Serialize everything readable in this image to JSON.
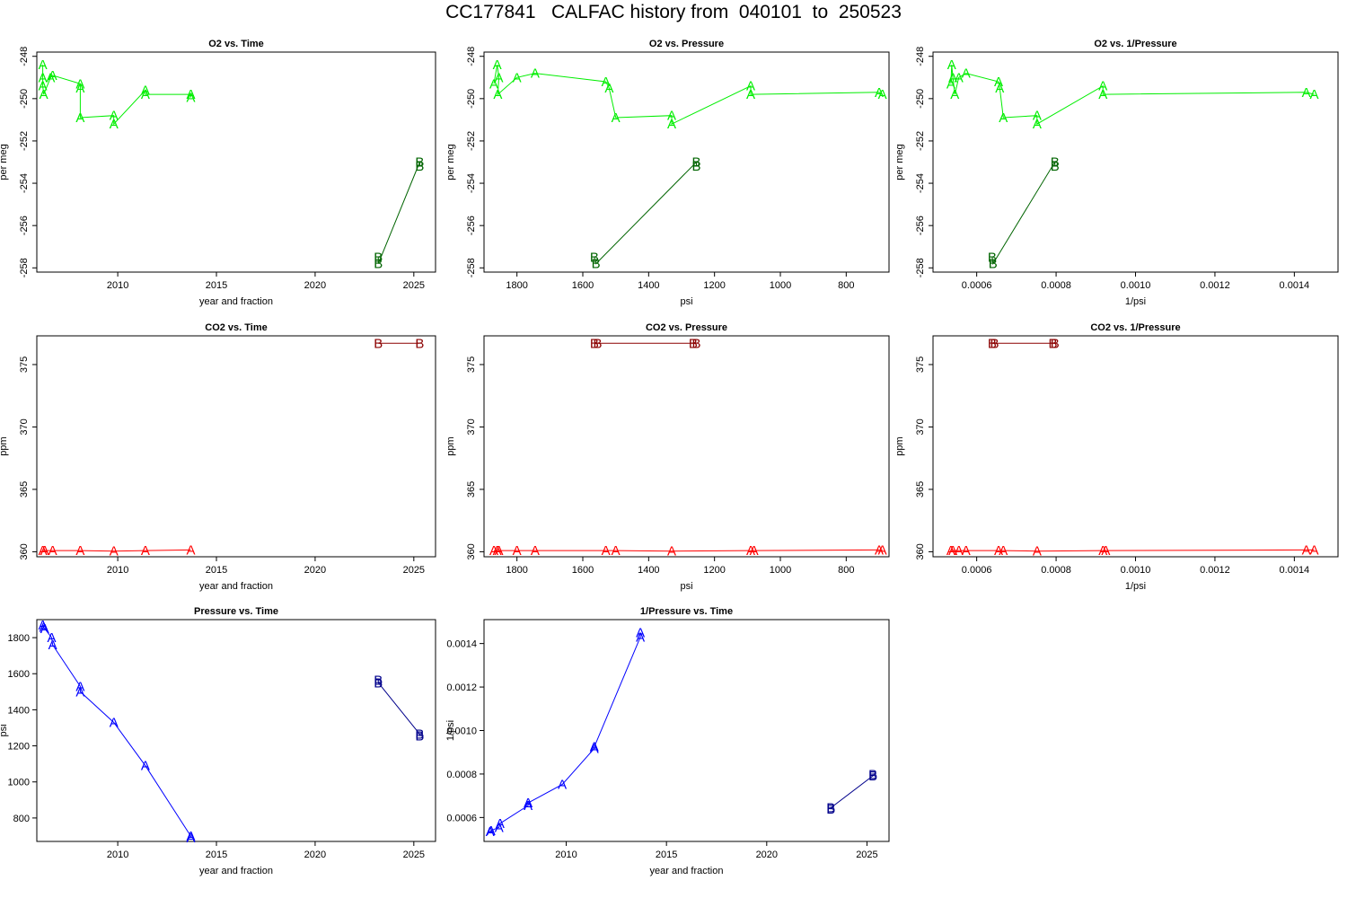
{
  "page_title": "CC177841   CALFAC history from  040101  to  250523",
  "chart_data": [
    {
      "type": "scatter",
      "title": "O2 vs. Time",
      "xlabel": "year and fraction",
      "ylabel": "per meg",
      "xlim": [
        2005.9,
        2026.1
      ],
      "ylim": [
        -258.2,
        -247.8
      ],
      "yreverse": false,
      "xreverse": false,
      "ylabel_rotate": true,
      "xticks": [
        2010,
        2015,
        2020,
        2025
      ],
      "yticks": [
        -258,
        -256,
        -254,
        -252,
        -250,
        -248
      ],
      "xtick_labels": [
        "2010",
        "2015",
        "2020",
        "2025"
      ],
      "ytick_labels": [
        "-258",
        "-256",
        "-254",
        "-252",
        "-250",
        "-248"
      ],
      "series": [
        {
          "name": "A",
          "color": "#00ee00",
          "line": true,
          "points": [
            [
              2006.2,
              -248.4
            ],
            [
              2006.2,
              -249.0
            ],
            [
              2006.2,
              -249.4
            ],
            [
              2006.25,
              -249.8
            ],
            [
              2006.6,
              -249.0
            ],
            [
              2006.7,
              -248.9
            ],
            [
              2008.1,
              -249.3
            ],
            [
              2008.1,
              -249.5
            ],
            [
              2008.1,
              -250.9
            ],
            [
              2009.8,
              -250.8
            ],
            [
              2009.8,
              -251.2
            ],
            [
              2011.4,
              -249.6
            ],
            [
              2011.4,
              -249.8
            ],
            [
              2013.7,
              -249.8
            ],
            [
              2013.7,
              -249.95
            ]
          ]
        },
        {
          "name": "B",
          "color": "#006400",
          "line": true,
          "points": [
            [
              2023.2,
              -257.5
            ],
            [
              2023.2,
              -257.8
            ],
            [
              2025.3,
              -253.0
            ],
            [
              2025.3,
              -253.2
            ]
          ]
        }
      ]
    },
    {
      "type": "scatter",
      "title": "O2 vs. Pressure",
      "xlabel": "psi",
      "ylabel": "per meg",
      "xlim": [
        1900,
        670
      ],
      "ylim": [
        -258.2,
        -247.8
      ],
      "yreverse": false,
      "xreverse": true,
      "ylabel_rotate": true,
      "xticks": [
        1800,
        1600,
        1400,
        1200,
        1000,
        800
      ],
      "yticks": [
        -258,
        -256,
        -254,
        -252,
        -250,
        -248
      ],
      "xtick_labels": [
        "1800",
        "1600",
        "1400",
        "1200",
        "1000",
        "800"
      ],
      "ytick_labels": [
        "-258",
        "-256",
        "-254",
        "-252",
        "-250",
        "-248"
      ],
      "series": [
        {
          "name": "A",
          "color": "#00ee00",
          "line": true,
          "points": [
            [
              1870,
              -249.3
            ],
            [
              1860,
              -248.4
            ],
            [
              1855,
              -249.0
            ],
            [
              1858,
              -249.8
            ],
            [
              1800,
              -249.0
            ],
            [
              1745,
              -248.8
            ],
            [
              1530,
              -249.2
            ],
            [
              1520,
              -249.5
            ],
            [
              1500,
              -250.9
            ],
            [
              1330,
              -250.8
            ],
            [
              1330,
              -251.2
            ],
            [
              1090,
              -249.4
            ],
            [
              1090,
              -249.8
            ],
            [
              700,
              -249.7
            ],
            [
              690,
              -249.8
            ]
          ]
        },
        {
          "name": "B",
          "color": "#006400",
          "line": true,
          "points": [
            [
              1565,
              -257.5
            ],
            [
              1560,
              -257.8
            ],
            [
              1255,
              -253.0
            ],
            [
              1255,
              -253.2
            ]
          ]
        }
      ]
    },
    {
      "type": "scatter",
      "title": "O2 vs. 1/Pressure",
      "xlabel": "1/psi",
      "ylabel": "per meg",
      "xlim": [
        0.00049,
        0.00151
      ],
      "ylim": [
        -258.2,
        -247.8
      ],
      "yreverse": false,
      "xreverse": false,
      "ylabel_rotate": true,
      "xticks": [
        0.0006,
        0.0008,
        0.001,
        0.0012,
        0.0014
      ],
      "yticks": [
        -258,
        -256,
        -254,
        -252,
        -250,
        -248
      ],
      "xtick_labels": [
        "0.0006",
        "0.0008",
        "0.0010",
        "0.0012",
        "0.0014"
      ],
      "ytick_labels": [
        "-258",
        "-256",
        "-254",
        "-252",
        "-250",
        "-248"
      ],
      "series": [
        {
          "name": "A",
          "color": "#00ee00",
          "line": true,
          "points": [
            [
              0.000535,
              -249.3
            ],
            [
              0.000537,
              -248.4
            ],
            [
              0.00054,
              -249.0
            ],
            [
              0.000545,
              -249.8
            ],
            [
              0.000555,
              -249.0
            ],
            [
              0.000573,
              -248.8
            ],
            [
              0.000655,
              -249.2
            ],
            [
              0.000658,
              -249.5
            ],
            [
              0.000667,
              -250.9
            ],
            [
              0.000752,
              -250.8
            ],
            [
              0.000752,
              -251.2
            ],
            [
              0.000918,
              -249.4
            ],
            [
              0.000918,
              -249.8
            ],
            [
              0.00143,
              -249.7
            ],
            [
              0.00145,
              -249.8
            ]
          ]
        },
        {
          "name": "B",
          "color": "#006400",
          "line": true,
          "points": [
            [
              0.000639,
              -257.5
            ],
            [
              0.000641,
              -257.8
            ],
            [
              0.000797,
              -253.0
            ],
            [
              0.000797,
              -253.2
            ]
          ]
        }
      ]
    },
    {
      "type": "scatter",
      "title": "CO2 vs. Time",
      "xlabel": "year and fraction",
      "ylabel": "ppm",
      "xlim": [
        2005.9,
        2026.1
      ],
      "ylim": [
        359.6,
        377.3
      ],
      "yreverse": false,
      "xreverse": false,
      "ylabel_rotate": true,
      "xticks": [
        2010,
        2015,
        2020,
        2025
      ],
      "yticks": [
        360,
        365,
        370,
        375
      ],
      "xtick_labels": [
        "2010",
        "2015",
        "2020",
        "2025"
      ],
      "ytick_labels": [
        "360",
        "365",
        "370",
        "375"
      ],
      "series": [
        {
          "name": "A",
          "color": "#ff0000",
          "line": true,
          "points": [
            [
              2006.2,
              360.1
            ],
            [
              2006.3,
              360.1
            ],
            [
              2006.7,
              360.1
            ],
            [
              2008.1,
              360.1
            ],
            [
              2009.8,
              360.05
            ],
            [
              2011.4,
              360.1
            ],
            [
              2013.7,
              360.15
            ]
          ]
        },
        {
          "name": "B",
          "color": "#8b0000",
          "line": true,
          "points": [
            [
              2023.2,
              376.7
            ],
            [
              2025.3,
              376.7
            ]
          ]
        }
      ]
    },
    {
      "type": "scatter",
      "title": "CO2 vs. Pressure",
      "xlabel": "psi",
      "ylabel": "ppm",
      "xlim": [
        1900,
        670
      ],
      "ylim": [
        359.6,
        377.3
      ],
      "yreverse": false,
      "xreverse": true,
      "ylabel_rotate": true,
      "xticks": [
        1800,
        1600,
        1400,
        1200,
        1000,
        800
      ],
      "yticks": [
        360,
        365,
        370,
        375
      ],
      "xtick_labels": [
        "1800",
        "1600",
        "1400",
        "1200",
        "1000",
        "800"
      ],
      "ytick_labels": [
        "360",
        "365",
        "370",
        "375"
      ],
      "series": [
        {
          "name": "A",
          "color": "#ff0000",
          "line": true,
          "points": [
            [
              1870,
              360.1
            ],
            [
              1860,
              360.1
            ],
            [
              1855,
              360.1
            ],
            [
              1800,
              360.1
            ],
            [
              1745,
              360.1
            ],
            [
              1530,
              360.1
            ],
            [
              1500,
              360.1
            ],
            [
              1330,
              360.05
            ],
            [
              1090,
              360.1
            ],
            [
              1080,
              360.1
            ],
            [
              700,
              360.15
            ],
            [
              690,
              360.15
            ]
          ]
        },
        {
          "name": "B",
          "color": "#8b0000",
          "line": true,
          "points": [
            [
              1565,
              376.7
            ],
            [
              1555,
              376.7
            ],
            [
              1265,
              376.7
            ],
            [
              1255,
              376.7
            ]
          ]
        }
      ]
    },
    {
      "type": "scatter",
      "title": "CO2 vs. 1/Pressure",
      "xlabel": "1/psi",
      "ylabel": "ppm",
      "xlim": [
        0.00049,
        0.00151
      ],
      "ylim": [
        359.6,
        377.3
      ],
      "yreverse": false,
      "xreverse": false,
      "ylabel_rotate": true,
      "xticks": [
        0.0006,
        0.0008,
        0.001,
        0.0012,
        0.0014
      ],
      "yticks": [
        360,
        365,
        370,
        375
      ],
      "xtick_labels": [
        "0.0006",
        "0.0008",
        "0.0010",
        "0.0012",
        "0.0014"
      ],
      "ytick_labels": [
        "360",
        "365",
        "370",
        "375"
      ],
      "series": [
        {
          "name": "A",
          "color": "#ff0000",
          "line": true,
          "points": [
            [
              0.000535,
              360.1
            ],
            [
              0.00054,
              360.1
            ],
            [
              0.000555,
              360.1
            ],
            [
              0.000573,
              360.1
            ],
            [
              0.000655,
              360.1
            ],
            [
              0.000667,
              360.1
            ],
            [
              0.000752,
              360.05
            ],
            [
              0.000918,
              360.1
            ],
            [
              0.000925,
              360.1
            ],
            [
              0.00143,
              360.15
            ],
            [
              0.00145,
              360.15
            ]
          ]
        },
        {
          "name": "B",
          "color": "#8b0000",
          "line": true,
          "points": [
            [
              0.000639,
              376.7
            ],
            [
              0.000645,
              376.7
            ],
            [
              0.000792,
              376.7
            ],
            [
              0.000797,
              376.7
            ]
          ]
        }
      ]
    },
    {
      "type": "scatter",
      "title": "Pressure vs. Time",
      "xlabel": "year and fraction",
      "ylabel": "psi",
      "xlim": [
        2005.9,
        2026.1
      ],
      "ylim": [
        670,
        1900
      ],
      "yreverse": false,
      "xreverse": false,
      "ylabel_rotate": false,
      "xticks": [
        2010,
        2015,
        2020,
        2025
      ],
      "yticks": [
        800,
        1000,
        1200,
        1400,
        1600,
        1800
      ],
      "xtick_labels": [
        "2010",
        "2015",
        "2020",
        "2025"
      ],
      "ytick_labels": [
        "800",
        "1000",
        "1200",
        "1400",
        "1600",
        "1800"
      ],
      "series": [
        {
          "name": "A",
          "color": "#0000ff",
          "line": true,
          "points": [
            [
              2006.2,
              1870
            ],
            [
              2006.25,
              1858
            ],
            [
              2006.3,
              1850
            ],
            [
              2006.65,
              1800
            ],
            [
              2006.7,
              1760
            ],
            [
              2008.1,
              1530
            ],
            [
              2008.1,
              1500
            ],
            [
              2009.8,
              1330
            ],
            [
              2011.4,
              1090
            ],
            [
              2013.7,
              700
            ],
            [
              2013.7,
              690
            ]
          ]
        },
        {
          "name": "B",
          "color": "#00008b",
          "line": true,
          "points": [
            [
              2023.2,
              1565
            ],
            [
              2023.2,
              1550
            ],
            [
              2025.3,
              1265
            ],
            [
              2025.3,
              1255
            ]
          ]
        }
      ]
    },
    {
      "type": "scatter",
      "title": "1/Pressure vs. Time",
      "xlabel": "year and fraction",
      "ylabel": "1/psi",
      "xlim": [
        2005.9,
        2026.1
      ],
      "ylim": [
        0.00049,
        0.00151
      ],
      "yreverse": false,
      "xreverse": false,
      "ylabel_rotate": false,
      "xticks": [
        2010,
        2015,
        2020,
        2025
      ],
      "yticks": [
        0.0006,
        0.0008,
        0.001,
        0.0012,
        0.0014
      ],
      "xtick_labels": [
        "2010",
        "2015",
        "2020",
        "2025"
      ],
      "ytick_labels": [
        "0.0006",
        "0.0008",
        "0.0010",
        "0.0012",
        "0.0014"
      ],
      "series": [
        {
          "name": "A",
          "color": "#0000ff",
          "line": true,
          "points": [
            [
              2006.2,
              0.000535
            ],
            [
              2006.25,
              0.00054
            ],
            [
              2006.65,
              0.000555
            ],
            [
              2006.7,
              0.000573
            ],
            [
              2008.1,
              0.000655
            ],
            [
              2008.1,
              0.000667
            ],
            [
              2009.8,
              0.000752
            ],
            [
              2011.4,
              0.000918
            ],
            [
              2011.4,
              0.000925
            ],
            [
              2013.7,
              0.00143
            ],
            [
              2013.7,
              0.00145
            ]
          ]
        },
        {
          "name": "B",
          "color": "#00008b",
          "line": true,
          "points": [
            [
              2023.2,
              0.000639
            ],
            [
              2023.2,
              0.000645
            ],
            [
              2025.3,
              0.000792
            ],
            [
              2025.3,
              0.000797
            ]
          ]
        }
      ]
    }
  ]
}
